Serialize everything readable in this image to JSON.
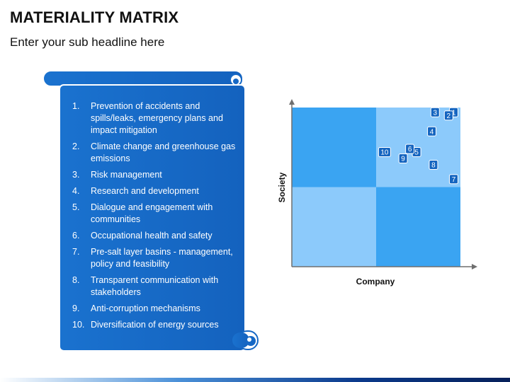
{
  "header": {
    "title": "MATERIALITY MATRIX",
    "subtitle": "Enter your sub headline here"
  },
  "scroll": {
    "items": [
      {
        "num": "1.",
        "text": "Prevention of accidents and spills/leaks, emergency plans and impact mitigation"
      },
      {
        "num": "2.",
        "text": "Climate change and greenhouse gas emissions"
      },
      {
        "num": "3.",
        "text": "Risk management"
      },
      {
        "num": "4.",
        "text": "Research and development"
      },
      {
        "num": "5.",
        "text": "Dialogue and engagement with communities"
      },
      {
        "num": "6.",
        "text": "Occupational health and safety"
      },
      {
        "num": "7.",
        "text": "Pre-salt layer basins - management, policy and feasibility"
      },
      {
        "num": "8.",
        "text": "Transparent communication with stakeholders"
      },
      {
        "num": "9.",
        "text": "Anti-corruption mechanisms"
      },
      {
        "num": "10.",
        "text": "Diversification of energy sources"
      }
    ]
  },
  "chart_data": {
    "type": "scatter",
    "xlabel": "Company",
    "ylabel": "Society",
    "xlim": [
      0,
      1
    ],
    "ylim": [
      0,
      1
    ],
    "quadrant_split": [
      0.5,
      0.5
    ],
    "points": [
      {
        "label": "1",
        "x": 0.96,
        "y": 0.97
      },
      {
        "label": "2",
        "x": 0.93,
        "y": 0.95
      },
      {
        "label": "3",
        "x": 0.85,
        "y": 0.97
      },
      {
        "label": "4",
        "x": 0.83,
        "y": 0.85
      },
      {
        "label": "5",
        "x": 0.74,
        "y": 0.72
      },
      {
        "label": "6",
        "x": 0.7,
        "y": 0.74
      },
      {
        "label": "7",
        "x": 0.96,
        "y": 0.55
      },
      {
        "label": "8",
        "x": 0.84,
        "y": 0.64
      },
      {
        "label": "9",
        "x": 0.66,
        "y": 0.68
      },
      {
        "label": "10",
        "x": 0.55,
        "y": 0.72
      }
    ],
    "colors": {
      "quadrant_top_left": "#3aa4f2",
      "quadrant_top_right": "#8ccafb",
      "quadrant_bottom_left": "#8ccafb",
      "quadrant_bottom_right": "#3aa4f2",
      "marker": "#1565c0",
      "axis": "#6f6f6f"
    }
  },
  "colors": {
    "scroll_fill": "#1668c5",
    "scroll_edge": "#4a90d8"
  }
}
